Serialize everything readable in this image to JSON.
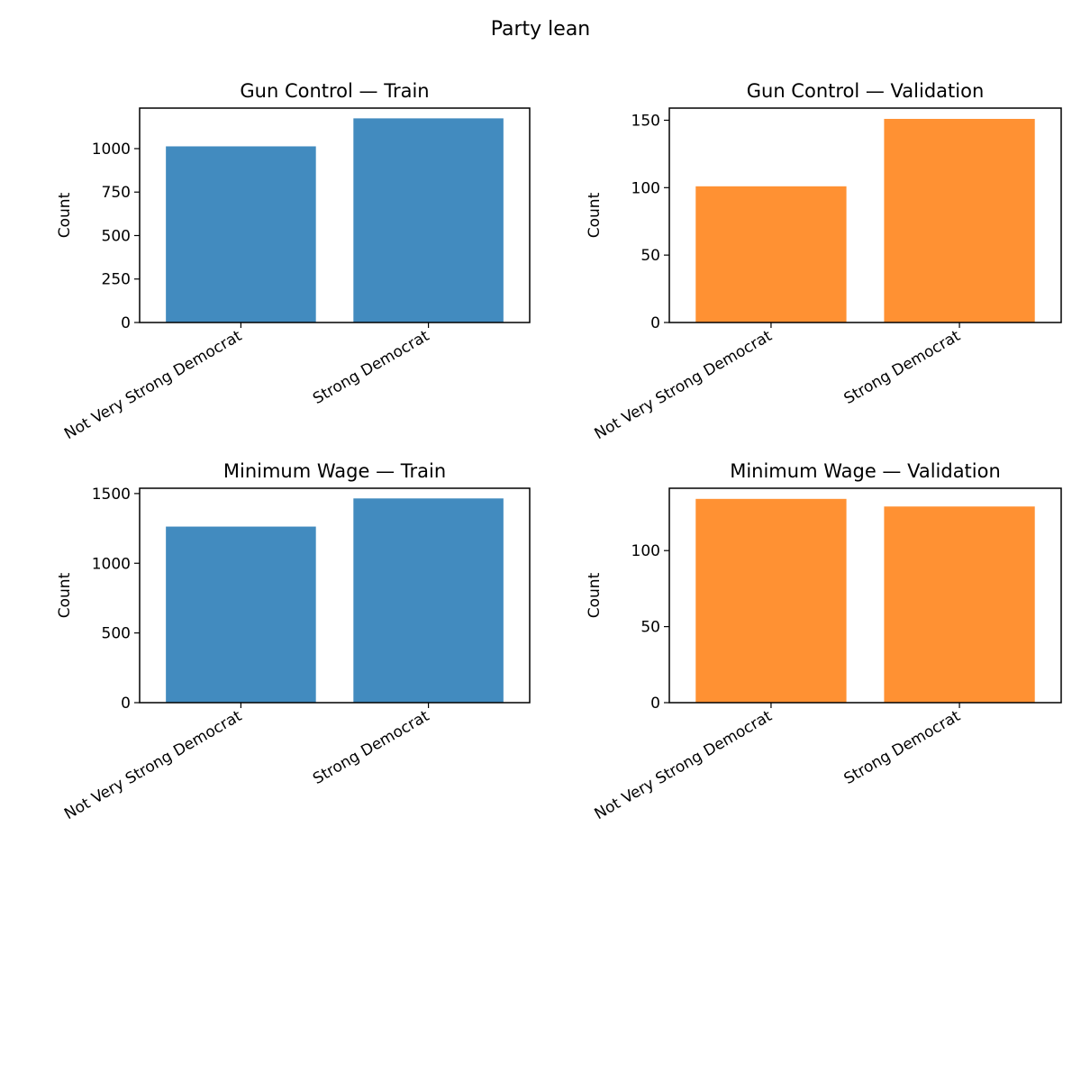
{
  "figure": {
    "title": "Party lean"
  },
  "chart_data": [
    {
      "type": "bar",
      "title": "Gun Control — Train",
      "categories": [
        "Not Very Strong Democrat",
        "Strong Democrat"
      ],
      "values": [
        1013,
        1174
      ],
      "ylabel": "Count",
      "xlabel": "",
      "ylim": [
        0,
        1233
      ],
      "yticks": [
        0,
        250,
        500,
        750,
        1000
      ],
      "color": "#428bbf"
    },
    {
      "type": "bar",
      "title": "Gun Control — Validation",
      "categories": [
        "Not Very Strong Democrat",
        "Strong Democrat"
      ],
      "values": [
        101,
        151
      ],
      "ylabel": "Count",
      "xlabel": "",
      "ylim": [
        0,
        159
      ],
      "yticks": [
        0,
        50,
        100,
        150
      ],
      "color": "#ff9133"
    },
    {
      "type": "bar",
      "title": "Minimum Wage — Train",
      "categories": [
        "Not Very Strong Democrat",
        "Strong Democrat"
      ],
      "values": [
        1263,
        1465
      ],
      "ylabel": "Count",
      "xlabel": "",
      "ylim": [
        0,
        1538
      ],
      "yticks": [
        0,
        500,
        1000,
        1500
      ],
      "color": "#428bbf"
    },
    {
      "type": "bar",
      "title": "Minimum Wage — Validation",
      "categories": [
        "Not Very Strong Democrat",
        "Strong Democrat"
      ],
      "values": [
        134,
        129
      ],
      "ylabel": "Count",
      "xlabel": "",
      "ylim": [
        0,
        141
      ],
      "yticks": [
        0,
        50,
        100
      ],
      "color": "#ff9133"
    }
  ]
}
